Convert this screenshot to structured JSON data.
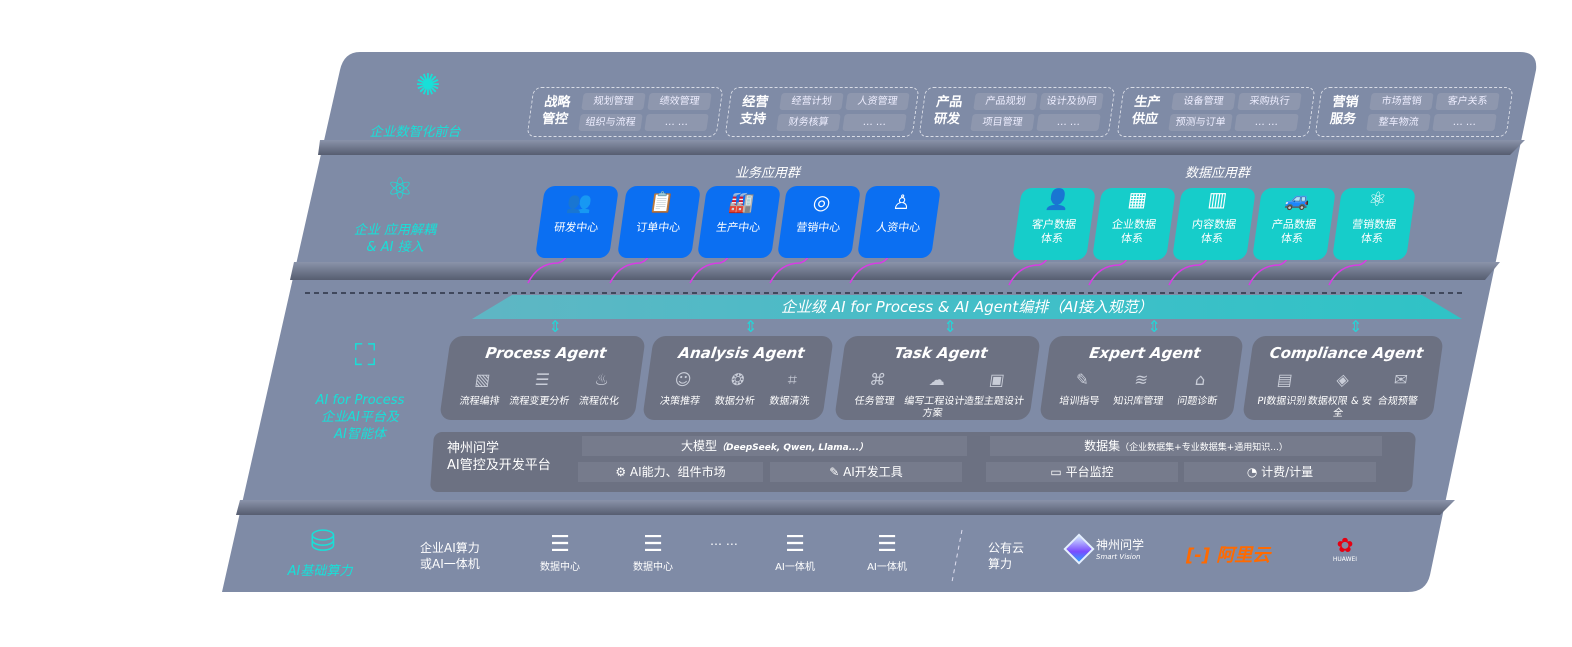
{
  "layers": {
    "frontend": {
      "label": "企业数智化前台",
      "icon": "brain-icon",
      "groups": [
        {
          "title": "战略管控",
          "items": [
            "规划管理",
            "绩效管理",
            "组织与流程",
            "… …"
          ]
        },
        {
          "title": "经营支持",
          "items": [
            "经营计划",
            "人资管理",
            "财务核算",
            "… …"
          ]
        },
        {
          "title": "产品研发",
          "items": [
            "产品规划",
            "设计及协同",
            "项目管理",
            "… …"
          ]
        },
        {
          "title": "生产供应",
          "items": [
            "设备管理",
            "采购执行",
            "预测与订单",
            "… …"
          ]
        },
        {
          "title": "营销服务",
          "items": [
            "市场营销",
            "客户关系",
            "整车物流",
            "… …"
          ]
        }
      ]
    },
    "apps": {
      "label_line1": "企业 应用解耦",
      "label_line2": "& AI 接入",
      "icon": "molecule-icon",
      "business_title": "业务应用群",
      "business": [
        {
          "label": "研发中心",
          "icon": "users-icon"
        },
        {
          "label": "订单中心",
          "icon": "clipboard-icon"
        },
        {
          "label": "生产中心",
          "icon": "factory-icon"
        },
        {
          "label": "营销中心",
          "icon": "target-icon"
        },
        {
          "label": "人资中心",
          "icon": "person-icon"
        }
      ],
      "data_title": "数据应用群",
      "data": [
        {
          "line1": "客户数据",
          "line2": "体系",
          "icon": "user-icon"
        },
        {
          "line1": "企业数据",
          "line2": "体系",
          "icon": "building-icon"
        },
        {
          "line1": "内容数据",
          "line2": "体系",
          "icon": "books-icon"
        },
        {
          "line1": "产品数据",
          "line2": "体系",
          "icon": "car-icon"
        },
        {
          "line1": "营销数据",
          "line2": "体系",
          "icon": "atom-icon"
        }
      ]
    },
    "ai": {
      "label_line1": "AI for Process",
      "label_line2": "企业AI平台及",
      "label_line3": "AI智能体",
      "icon": "face-scan-icon",
      "banner": "企业级 AI for Process & AI Agent编排（AI接入规范）",
      "agents": [
        {
          "name": "Process Agent",
          "items": [
            "流程编排",
            "流程变更分析",
            "流程优化"
          ]
        },
        {
          "name": "Analysis Agent",
          "items": [
            "决策推荐",
            "数据分析",
            "数据清洗"
          ]
        },
        {
          "name": "Task Agent",
          "items": [
            "任务管理",
            "编写工程设计方案",
            "造型主题设计"
          ]
        },
        {
          "name": "Expert Agent",
          "items": [
            "培训指导",
            "知识库管理",
            "问题诊断"
          ]
        },
        {
          "name": "Compliance Agent",
          "items": [
            "PI数据识别",
            "数据权限 & 安全",
            "合规预警"
          ]
        }
      ],
      "platform": {
        "title_line1": "神州问学",
        "title_line2": "AI管控及开发平台",
        "model": "大模型",
        "model_note": "（DeepSeek, Qwen, Llama...）",
        "dataset": "数据集",
        "dataset_note": "（企业数据集+专业数据集+通用知识...）",
        "tools": [
          "AI能力、组件市场",
          "AI开发工具",
          "平台监控",
          "计费/计量"
        ]
      }
    },
    "compute": {
      "label": "AI基础算力",
      "icon": "database-icon",
      "private_line1": "企业AI算力",
      "private_line2": "或AI一体机",
      "servers": [
        "数据中心",
        "数据中心",
        "AI一体机",
        "AI一体机"
      ],
      "ellipsis": "… …",
      "public_line1": "公有云",
      "public_line2": "算力",
      "vendors": {
        "smartvision_cn": "神州问学",
        "smartvision_en": "Smart Vision",
        "aliyun": "阿里云",
        "huawei": "HUAWEI"
      }
    }
  },
  "colors": {
    "panel": "#7f8ba6",
    "accent_teal": "#18e0d8",
    "business_blue": "#0b6ff2",
    "data_teal": "#16cdca",
    "arrow_magenta": "#d83ce4",
    "aliyun_orange": "#ff6a00",
    "huawei_red": "#e60012"
  }
}
